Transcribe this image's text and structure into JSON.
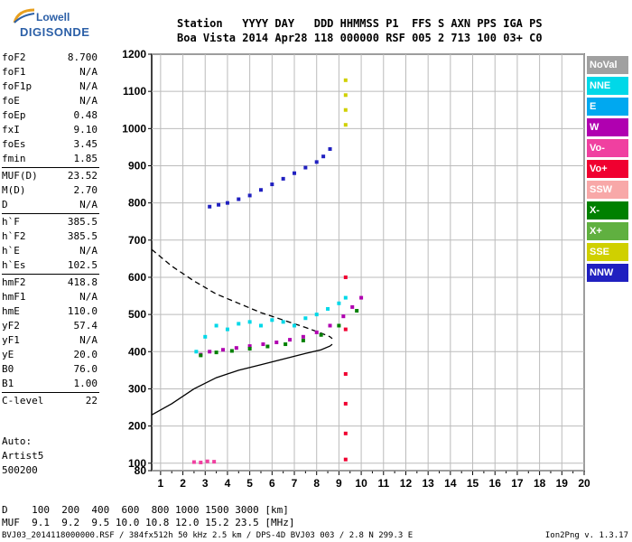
{
  "logo": {
    "line1": "Lowell",
    "line2": "DIGISONDE"
  },
  "header": {
    "row1": "Station   YYYY DAY   DDD HHMMSS P1  FFS S AXN PPS IGA PS",
    "row2": "Boa Vista 2014 Apr28 118 000000 RSF 005 2 713 100 03+ C0"
  },
  "params": [
    [
      {
        "k": "foF2",
        "v": "8.700"
      },
      {
        "k": "foF1",
        "v": "N/A"
      },
      {
        "k": "foF1p",
        "v": "N/A"
      },
      {
        "k": "foE",
        "v": "N/A"
      },
      {
        "k": "foEp",
        "v": "0.48"
      },
      {
        "k": "fxI",
        "v": "9.10"
      },
      {
        "k": "foEs",
        "v": "3.45"
      },
      {
        "k": "fmin",
        "v": "1.85"
      }
    ],
    [
      {
        "k": "MUF(D)",
        "v": "23.52"
      },
      {
        "k": "M(D)",
        "v": "2.70"
      },
      {
        "k": "D",
        "v": "N/A"
      }
    ],
    [
      {
        "k": "h`F",
        "v": "385.5"
      },
      {
        "k": "h`F2",
        "v": "385.5"
      },
      {
        "k": "h`E",
        "v": "N/A"
      },
      {
        "k": "h`Es",
        "v": "102.5"
      }
    ],
    [
      {
        "k": "hmF2",
        "v": "418.8"
      },
      {
        "k": "hmF1",
        "v": "N/A"
      },
      {
        "k": "hmE",
        "v": "110.0"
      },
      {
        "k": "yF2",
        "v": "57.4"
      },
      {
        "k": "yF1",
        "v": "N/A"
      },
      {
        "k": "yE",
        "v": "20.0"
      },
      {
        "k": "B0",
        "v": "76.0"
      },
      {
        "k": "B1",
        "v": "1.00"
      }
    ],
    [
      {
        "k": "C-level",
        "v": "22"
      }
    ]
  ],
  "auto": {
    "label": "Auto:",
    "artist": "Artist5",
    "version": "500200"
  },
  "legend": [
    {
      "label": "NoVal",
      "color": "#a0a0a0"
    },
    {
      "label": "NNE",
      "color": "#00d8e8"
    },
    {
      "label": "E",
      "color": "#00a8f0"
    },
    {
      "label": "W",
      "color": "#b000b0"
    },
    {
      "label": "Vo-",
      "color": "#f040a0"
    },
    {
      "label": "Vo+",
      "color": "#f00030"
    },
    {
      "label": "SSW",
      "color": "#f8a8a8"
    },
    {
      "label": "X-",
      "color": "#008000"
    },
    {
      "label": "X+",
      "color": "#60b040"
    },
    {
      "label": "SSE",
      "color": "#d0d000"
    },
    {
      "label": "NNW",
      "color": "#2020c0"
    }
  ],
  "bottom": {
    "d_row": "D    100  200  400  600  800 1000 1500 3000 [km]",
    "muf_row": "MUF  9.1  9.2  9.5 10.0 10.8 12.0 15.2 23.5 [MHz]"
  },
  "footer": {
    "text": "BVJ03_2014118000000.RSF / 384fx512h 50 kHz 2.5 km / DPS-4D BVJ03 003 / 2.8 N 299.3 E",
    "version": "Ion2Png v. 1.3.17"
  },
  "chart_data": {
    "type": "scatter",
    "title": "",
    "xlabel": "",
    "ylabel": "",
    "xlim": [
      0.6,
      20.0
    ],
    "ylim": [
      80,
      1200
    ],
    "xticks": [
      1,
      2,
      3,
      4,
      5,
      6,
      7,
      8,
      9,
      10,
      11,
      12,
      13,
      14,
      15,
      16,
      17,
      18,
      19,
      20
    ],
    "yticks": [
      80,
      100,
      200,
      300,
      400,
      500,
      600,
      700,
      800,
      900,
      1000,
      1100,
      1200
    ],
    "grid": true,
    "series": [
      {
        "color": "#2020c0",
        "x": [
          3.2,
          3.6,
          4.0,
          4.5,
          5.0,
          5.5,
          6.0,
          6.5,
          7.0,
          7.5,
          8.0,
          8.3,
          8.6
        ],
        "y": [
          790,
          795,
          800,
          810,
          820,
          835,
          850,
          865,
          880,
          895,
          910,
          925,
          945
        ]
      },
      {
        "color": "#00d8e8",
        "x": [
          2.6,
          3.0,
          3.5,
          4.0,
          4.5,
          5.0,
          5.5,
          6.0,
          6.5,
          7.0,
          7.5,
          8.0,
          8.5,
          9.0,
          9.3
        ],
        "y": [
          400,
          440,
          470,
          460,
          475,
          480,
          470,
          485,
          480,
          470,
          490,
          500,
          515,
          530,
          545
        ]
      },
      {
        "color": "#b000b0",
        "x": [
          2.8,
          3.2,
          3.8,
          4.4,
          5.0,
          5.6,
          6.2,
          6.8,
          7.4,
          8.0,
          8.6,
          9.2,
          9.6,
          10.0
        ],
        "y": [
          392,
          400,
          405,
          410,
          415,
          420,
          425,
          432,
          440,
          452,
          470,
          495,
          520,
          545
        ]
      },
      {
        "color": "#008000",
        "x": [
          2.8,
          3.5,
          4.2,
          5.0,
          5.8,
          6.6,
          7.4,
          8.2,
          9.0,
          9.8
        ],
        "y": [
          390,
          398,
          402,
          408,
          414,
          420,
          430,
          445,
          470,
          510
        ]
      },
      {
        "color": "#f040a0",
        "x": [
          2.5,
          2.8,
          3.1,
          3.4
        ],
        "y": [
          103,
          102,
          105,
          104
        ]
      },
      {
        "color": "#d0d000",
        "x": [
          9.3,
          9.3,
          9.3,
          9.3
        ],
        "y": [
          1010,
          1050,
          1090,
          1130
        ]
      },
      {
        "color": "#f00030",
        "x": [
          9.3,
          9.3,
          9.3,
          9.3,
          9.3,
          9.3
        ],
        "y": [
          110,
          180,
          260,
          340,
          460,
          600
        ]
      }
    ],
    "profile_solid": {
      "x": [
        0.6,
        1.5,
        2.5,
        3.5,
        4.5,
        5.5,
        6.5,
        7.5,
        8.2,
        8.6,
        8.7
      ],
      "y": [
        230,
        260,
        300,
        330,
        350,
        365,
        380,
        395,
        405,
        415,
        420
      ]
    },
    "profile_dashed": {
      "x": [
        0.6,
        1.5,
        2.5,
        3.5,
        4.5,
        5.5,
        6.5,
        7.5,
        8.2,
        8.6,
        8.7
      ],
      "y": [
        675,
        630,
        590,
        555,
        530,
        505,
        485,
        465,
        450,
        440,
        435
      ]
    }
  }
}
